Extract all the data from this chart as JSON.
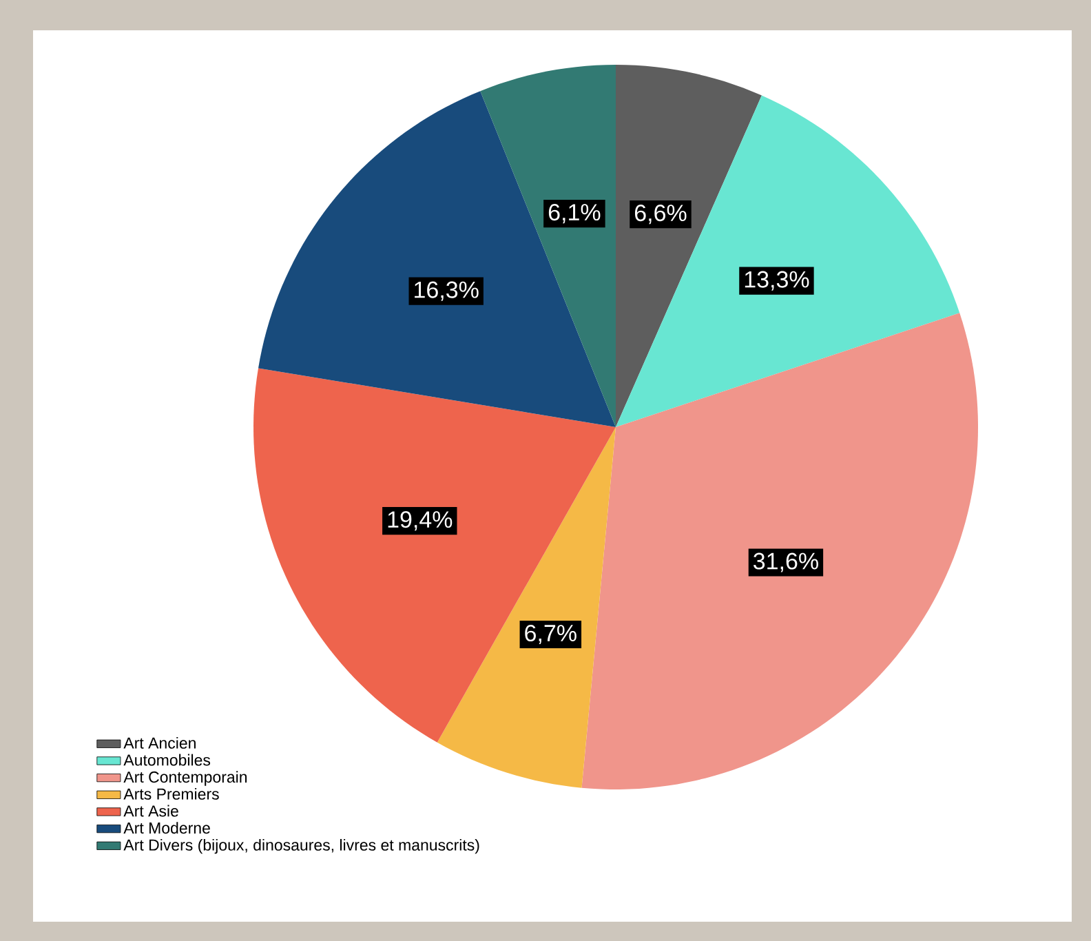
{
  "chart_data": {
    "type": "pie",
    "categories": [
      "Art Ancien",
      "Automobiles",
      "Art Contemporain",
      "Arts Premiers",
      "Art Asie",
      "Art Moderne",
      "Art Divers (bijoux, dinosaures, livres et manuscrits)"
    ],
    "values": [
      6.6,
      13.3,
      31.6,
      6.7,
      19.4,
      16.3,
      6.1
    ],
    "colors": [
      "#5e5e5e",
      "#68e6d2",
      "#f0958b",
      "#f5b946",
      "#ee644d",
      "#184b7c",
      "#327a73"
    ],
    "value_labels": [
      "6,6%",
      "13,3%",
      "31,6%",
      "6,7%",
      "19,4%",
      "16,3%",
      "6,1%"
    ],
    "legend": "bottom left"
  }
}
